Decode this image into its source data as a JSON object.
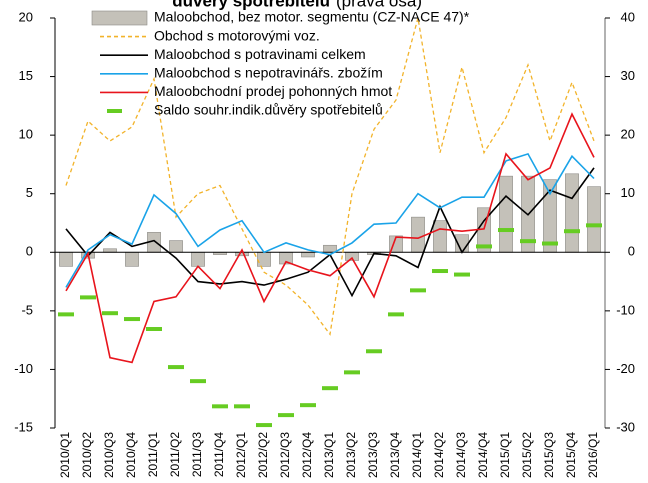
{
  "chart_data": {
    "type": "combo",
    "title": "důvěry spotřebitelů",
    "subtitle": "(pravá osa)",
    "categories": [
      "2010/Q1",
      "2010/Q2",
      "2010/Q3",
      "2010/Q4",
      "2011/Q1",
      "2011/Q2",
      "2011/Q3",
      "2011/Q4",
      "2012/Q1",
      "2012/Q2",
      "2012/Q3",
      "2012/Q4",
      "2013/Q1",
      "2013/Q2",
      "2013/Q3",
      "2013/Q4",
      "2014/Q1",
      "2014/Q2",
      "2014/Q3",
      "2014/Q4",
      "2015/Q1",
      "2015/Q2",
      "2015/Q3",
      "2015/Q4",
      "2016/Q1"
    ],
    "ylim": [
      -15,
      20
    ],
    "yticks": [
      -15,
      -10,
      -5,
      0,
      5,
      10,
      15,
      20
    ],
    "y2lim": [
      -30,
      40
    ],
    "y2ticks": [
      -30,
      -20,
      -10,
      0,
      10,
      20,
      30,
      40
    ],
    "series": [
      {
        "name": "Maloobchod, bez motor. segmentu (CZ-NACE 47)*",
        "kind": "bar",
        "color": "#c4c1b9",
        "values": [
          -1.2,
          -0.5,
          0.3,
          -1.2,
          1.7,
          1.0,
          -1.2,
          -0.2,
          -0.3,
          -1.2,
          -1.0,
          -0.4,
          0.6,
          -0.7,
          -0.2,
          1.4,
          3.0,
          2.7,
          1.5,
          3.8,
          6.5,
          6.5,
          6.2,
          6.7,
          5.6
        ]
      },
      {
        "name": "Obchod s motorovými voz.",
        "kind": "dashed-line",
        "color": "#f2b32a",
        "values": [
          5.7,
          11.2,
          9.5,
          10.7,
          14.8,
          3.0,
          5.0,
          5.7,
          2.0,
          -1.7,
          -2.8,
          -4.5,
          -7.0,
          5.0,
          10.5,
          13.0,
          20.0,
          8.5,
          15.8,
          8.5,
          11.5,
          16.0,
          9.5,
          14.5,
          9.5
        ]
      },
      {
        "name": "Maloobchod s potravinami celkem",
        "kind": "line",
        "color": "#000000",
        "values": [
          2.0,
          -0.3,
          1.7,
          0.5,
          1.0,
          -0.5,
          -2.5,
          -2.7,
          -2.5,
          -2.8,
          -2.3,
          -1.7,
          -0.2,
          -3.7,
          -0.1,
          -0.3,
          -1.3,
          3.9,
          0.0,
          2.7,
          4.8,
          3.2,
          5.3,
          4.6,
          7.2
        ]
      },
      {
        "name": "Maloobchod s nepotravinářs. zbožím",
        "kind": "line",
        "color": "#1aa3e8",
        "values": [
          -3.0,
          0.2,
          1.5,
          0.7,
          4.9,
          3.3,
          0.5,
          1.9,
          2.7,
          0.0,
          0.8,
          0.2,
          -0.2,
          0.8,
          2.4,
          2.5,
          5.0,
          3.8,
          4.7,
          4.7,
          7.8,
          8.4,
          5.0,
          8.2,
          6.3
        ]
      },
      {
        "name": "Maloobchodní prodej pohonných hmot",
        "kind": "line",
        "color": "#e8141c",
        "values": [
          -3.3,
          -0.1,
          -9.0,
          -9.4,
          -4.2,
          -3.8,
          -1.2,
          -3.1,
          0.2,
          -4.2,
          -0.8,
          -1.5,
          -2.0,
          -0.5,
          -3.8,
          1.3,
          1.2,
          2.0,
          1.8,
          2.0,
          8.4,
          6.2,
          7.2,
          11.8,
          8.1
        ]
      },
      {
        "name": "Saldo souhr.indik.důvěry spotřebitelů",
        "kind": "marker",
        "color": "#66cc22",
        "axis": "y2",
        "values": [
          -10.6,
          -7.7,
          -10.4,
          -11.4,
          -13.1,
          -19.6,
          -22.0,
          -26.3,
          -26.3,
          -29.5,
          -27.8,
          -26.1,
          -23.2,
          -20.5,
          -16.9,
          -10.6,
          -6.5,
          -3.2,
          -3.8,
          1.0,
          3.8,
          1.9,
          1.5,
          3.6,
          4.6
        ]
      }
    ]
  }
}
